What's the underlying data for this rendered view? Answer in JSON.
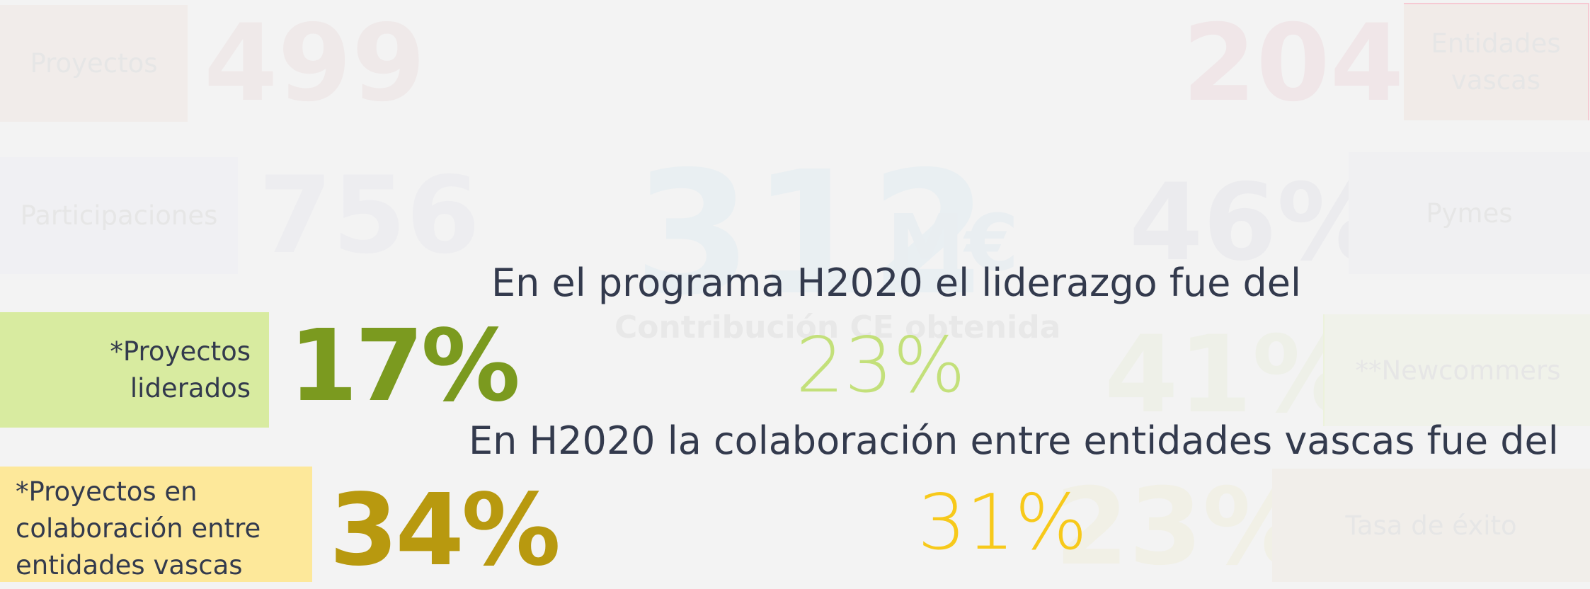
{
  "tiles": [
    {
      "label": "Proyectos",
      "value": "499"
    },
    {
      "label": "Entidades vascas",
      "value": "204"
    },
    {
      "label": "Participaciones",
      "value": "756"
    },
    {
      "label": "Pymes",
      "value": "46%"
    },
    {
      "label": "**Newcommers",
      "value": "41%"
    },
    {
      "label": "Tasa de éxito",
      "value": "23%"
    }
  ],
  "contribution": {
    "value": "312",
    "unit": "M€",
    "label": "Contribución CE obtenida"
  },
  "leadership": {
    "heading": "En el programa H2020 el liderazgo fue del",
    "label": "*Proyectos liderados",
    "value": "17%",
    "compare": "23%"
  },
  "collaboration": {
    "heading": "En H2020 la colaboración entre entidades vascas fue del",
    "label": "*Proyectos en colaboración entre entidades vascas",
    "value": "34%",
    "compare": "31%"
  }
}
